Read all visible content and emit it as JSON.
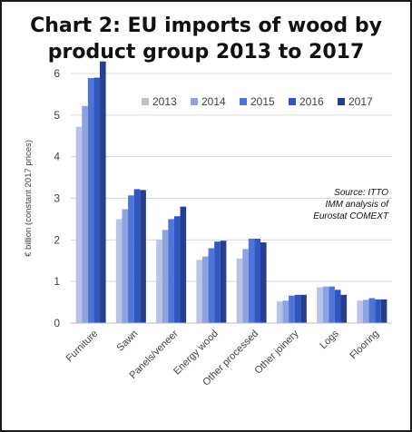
{
  "title_line1": "Chart 2: EU imports of wood by",
  "title_line2": "product group 2013 to 2017",
  "source_lines": [
    "Source: ITTO",
    "IMM analysis of",
    "Eurostat COMEXT"
  ],
  "colors": {
    "2013": "#b8c4e6",
    "2014": "#8ea2e0",
    "2015": "#4f74d8",
    "2016": "#3057bf",
    "2017": "#263f8f",
    "grid": "#d9d9d9",
    "axis_text": "#404040",
    "frame": "#1a1a1a"
  },
  "chart_data": {
    "type": "bar",
    "title": "Chart 2: EU imports of wood by product group 2013 to 2017",
    "ylabel": "€ billion (constant 2017 prices)",
    "xlabel": "",
    "ylim": [
      0,
      6
    ],
    "yticks": [
      0,
      1,
      2,
      3,
      4,
      5,
      6
    ],
    "grid": true,
    "legend_position": "top-right",
    "categories": [
      "Furniture",
      "Sawn",
      "Panels/veneer",
      "Energy wood",
      "Other processed",
      "Other joinery",
      "Logs",
      "Flooring"
    ],
    "series": [
      {
        "name": "2013",
        "values": [
          4.72,
          2.5,
          2.01,
          1.52,
          1.55,
          0.52,
          0.86,
          0.54
        ]
      },
      {
        "name": "2014",
        "values": [
          5.22,
          2.74,
          2.24,
          1.6,
          1.78,
          0.54,
          0.88,
          0.56
        ]
      },
      {
        "name": "2015",
        "values": [
          5.89,
          3.07,
          2.5,
          1.8,
          2.03,
          0.66,
          0.88,
          0.6
        ]
      },
      {
        "name": "2016",
        "values": [
          5.9,
          3.22,
          2.57,
          1.96,
          2.03,
          0.68,
          0.8,
          0.57
        ]
      },
      {
        "name": "2017",
        "values": [
          6.29,
          3.2,
          2.8,
          1.98,
          1.94,
          0.68,
          0.68,
          0.57
        ]
      }
    ]
  }
}
